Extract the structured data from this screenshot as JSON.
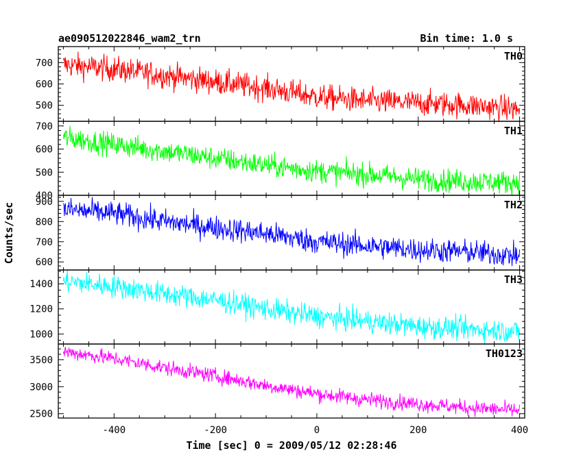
{
  "header": {
    "left_title": "ae090512022846_wam2_trn",
    "right_title": "Bin time: 1.0 s"
  },
  "chart_data": {
    "type": "line",
    "title": "ae090512022846_wam2_trn",
    "subtitle": "Bin time: 1.0 s",
    "xlabel": "Time [sec] 0 = 2009/05/12 02:28:46",
    "ylabel": "Counts/sec",
    "xlim": [
      -510,
      410
    ],
    "x_ticks": [
      -400,
      -200,
      0,
      200,
      400
    ],
    "panels": [
      {
        "name": "TH0",
        "color": "#ff0000",
        "ylim": [
          425,
          775
        ],
        "y_ticks": [
          500,
          600,
          700
        ],
        "trend": [
          [
            -500,
            690
          ],
          [
            -400,
            670
          ],
          [
            -300,
            640
          ],
          [
            -200,
            610
          ],
          [
            -100,
            580
          ],
          [
            0,
            540
          ],
          [
            100,
            520
          ],
          [
            200,
            510
          ],
          [
            300,
            500
          ],
          [
            400,
            480
          ]
        ],
        "noise": 30
      },
      {
        "name": "TH1",
        "color": "#00ff00",
        "ylim": [
          400,
          720
        ],
        "y_ticks": [
          400,
          500,
          600,
          700
        ],
        "trend": [
          [
            -500,
            650
          ],
          [
            -400,
            620
          ],
          [
            -300,
            590
          ],
          [
            -200,
            560
          ],
          [
            -100,
            530
          ],
          [
            0,
            505
          ],
          [
            100,
            490
          ],
          [
            200,
            470
          ],
          [
            300,
            460
          ],
          [
            400,
            455
          ]
        ],
        "noise": 25
      },
      {
        "name": "TH2",
        "color": "#0000ff",
        "ylim": [
          560,
          930
        ],
        "y_ticks": [
          600,
          700,
          800,
          900
        ],
        "trend": [
          [
            -500,
            860
          ],
          [
            -400,
            840
          ],
          [
            -300,
            800
          ],
          [
            -200,
            770
          ],
          [
            -100,
            740
          ],
          [
            0,
            700
          ],
          [
            100,
            680
          ],
          [
            200,
            660
          ],
          [
            300,
            650
          ],
          [
            400,
            630
          ]
        ],
        "noise": 30
      },
      {
        "name": "TH3",
        "color": "#00ffff",
        "ylim": [
          920,
          1510
        ],
        "y_ticks": [
          1000,
          1200,
          1400
        ],
        "trend": [
          [
            -500,
            1420
          ],
          [
            -400,
            1380
          ],
          [
            -300,
            1320
          ],
          [
            -200,
            1270
          ],
          [
            -100,
            1200
          ],
          [
            0,
            1140
          ],
          [
            100,
            1100
          ],
          [
            200,
            1060
          ],
          [
            300,
            1040
          ],
          [
            400,
            1020
          ]
        ],
        "noise": 45
      },
      {
        "name": "TH0123",
        "color": "#ff00ff",
        "ylim": [
          2420,
          3790
        ],
        "y_ticks": [
          2500,
          3000,
          3500
        ],
        "trend": [
          [
            -500,
            3650
          ],
          [
            -400,
            3520
          ],
          [
            -300,
            3350
          ],
          [
            -200,
            3200
          ],
          [
            -100,
            3020
          ],
          [
            0,
            2870
          ],
          [
            100,
            2760
          ],
          [
            200,
            2680
          ],
          [
            300,
            2610
          ],
          [
            400,
            2560
          ]
        ],
        "noise": 70
      }
    ]
  }
}
